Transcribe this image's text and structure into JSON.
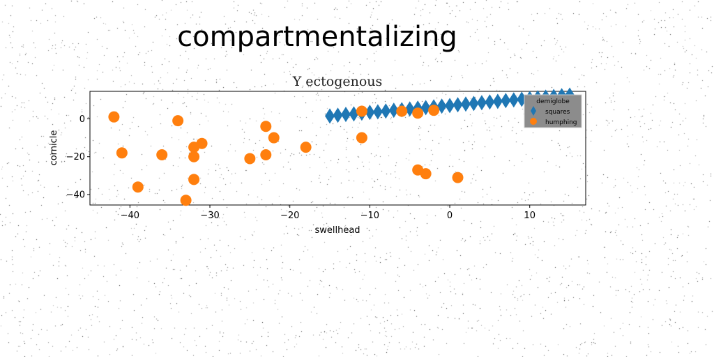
{
  "figure": {
    "suptitle": "compartmentalizing"
  },
  "chart_data": {
    "type": "scatter",
    "title": "Y ectogenous",
    "xlabel": "swellhead",
    "ylabel": "cornicle",
    "xlim": [
      -45,
      17
    ],
    "ylim": [
      -45.5,
      14.5
    ],
    "xticks": [
      -40,
      -30,
      -20,
      -10,
      0,
      10
    ],
    "yticks": [
      -40,
      -20,
      0
    ],
    "grid": false,
    "legend": {
      "title": "demiglobe",
      "placement": "upper right"
    },
    "series": [
      {
        "name": "squares",
        "marker": "thin_diamond",
        "color": "#1f77b4",
        "points": [
          [
            -15,
            1.5
          ],
          [
            -14,
            1.9
          ],
          [
            -13,
            2.3
          ],
          [
            -12,
            2.6
          ],
          [
            -11,
            3.0
          ],
          [
            -10,
            3.4
          ],
          [
            -9,
            3.7
          ],
          [
            -8,
            4.1
          ],
          [
            -7,
            4.5
          ],
          [
            -6,
            4.8
          ],
          [
            -5,
            5.2
          ],
          [
            -4,
            5.6
          ],
          [
            -3,
            5.9
          ],
          [
            -2,
            6.3
          ],
          [
            -1,
            6.7
          ],
          [
            0,
            7.0
          ],
          [
            1,
            7.4
          ],
          [
            2,
            7.8
          ],
          [
            3,
            8.1
          ],
          [
            4,
            8.5
          ],
          [
            5,
            8.9
          ],
          [
            6,
            9.2
          ],
          [
            7,
            9.6
          ],
          [
            8,
            10.0
          ],
          [
            9,
            10.3
          ],
          [
            10,
            10.7
          ],
          [
            11,
            11.1
          ],
          [
            12,
            11.4
          ],
          [
            13,
            11.8
          ],
          [
            14,
            12.2
          ],
          [
            15,
            12.5
          ]
        ]
      },
      {
        "name": "humphing",
        "marker": "circle",
        "color": "#ff7f0e",
        "points": [
          [
            -42,
            1
          ],
          [
            -41,
            -18
          ],
          [
            -39,
            -36
          ],
          [
            -36,
            -19
          ],
          [
            -34,
            -1
          ],
          [
            -33,
            -43
          ],
          [
            -32,
            -15
          ],
          [
            -32,
            -20
          ],
          [
            -32,
            -32
          ],
          [
            -31,
            -13
          ],
          [
            -25,
            -21
          ],
          [
            -23,
            -4
          ],
          [
            -23,
            -19
          ],
          [
            -22,
            -10
          ],
          [
            -18,
            -15
          ],
          [
            -11,
            4
          ],
          [
            -11,
            -10
          ],
          [
            -6,
            4
          ],
          [
            -4,
            3
          ],
          [
            -4,
            -27
          ],
          [
            -3,
            -29
          ],
          [
            -2,
            4.5
          ],
          [
            1,
            -31
          ]
        ]
      }
    ]
  }
}
